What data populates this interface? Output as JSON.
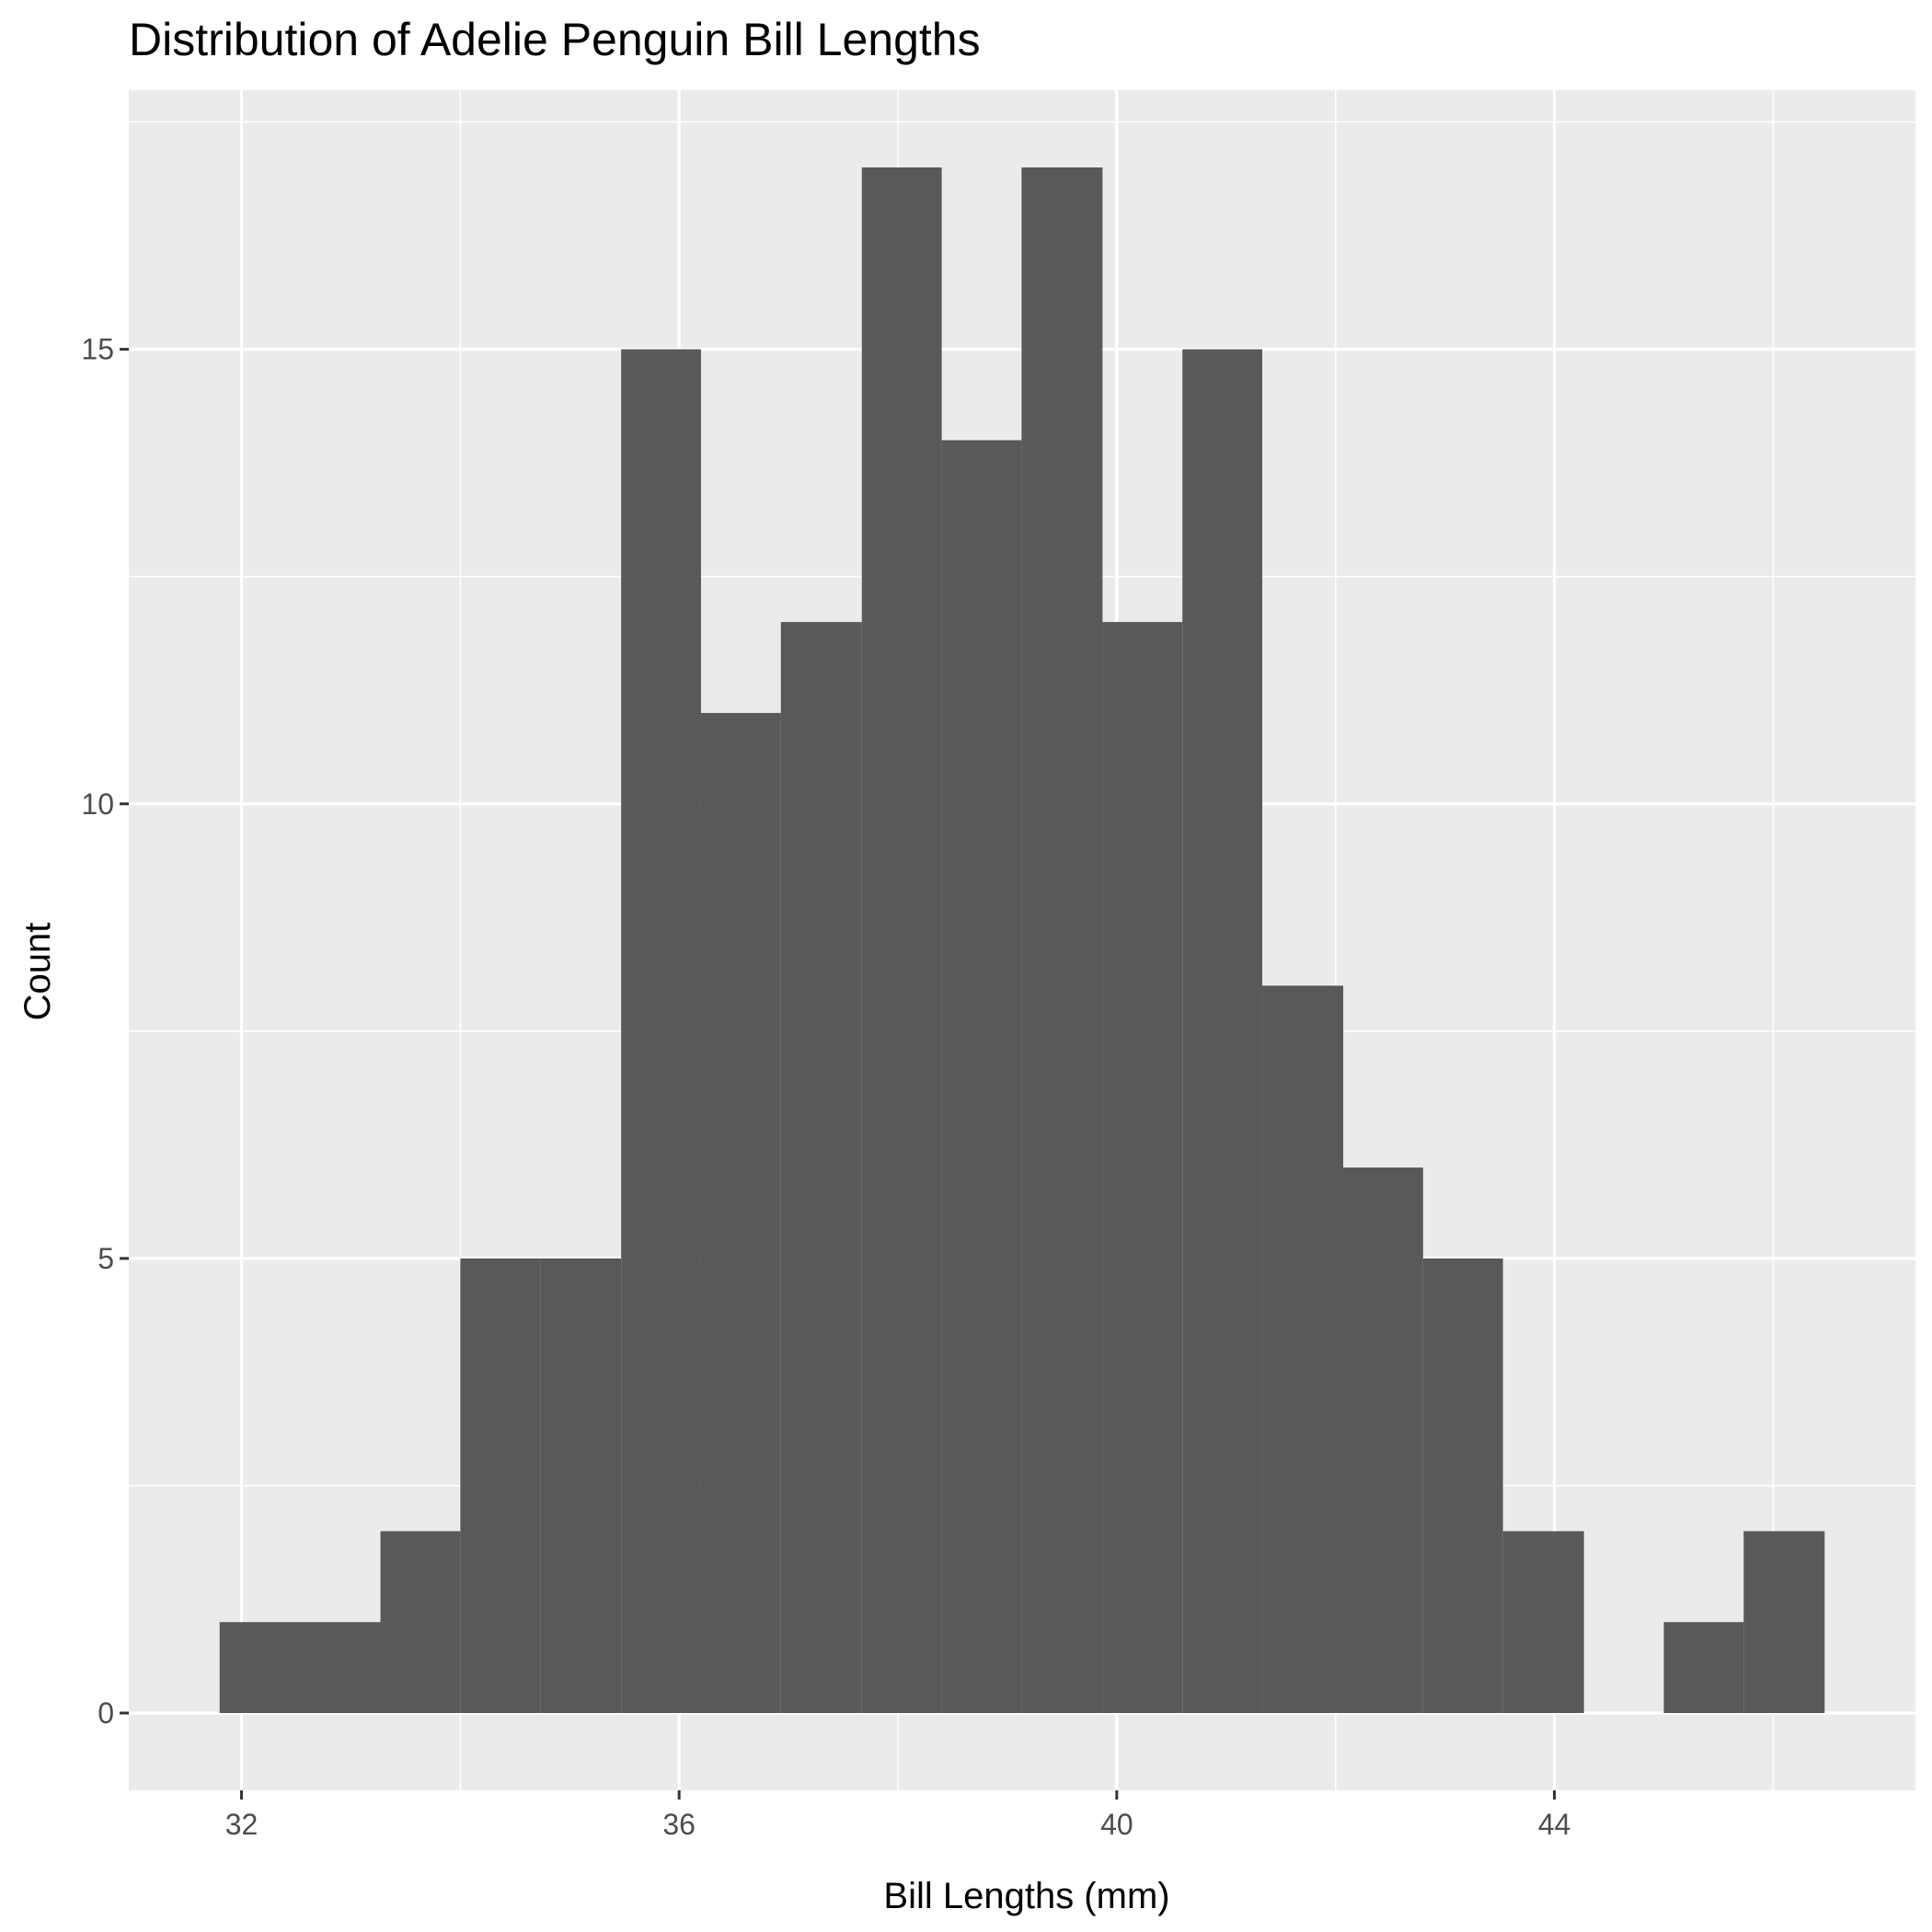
{
  "chart_data": {
    "type": "bar",
    "title": "Distribution of Adelie Penguin Bill Lengths",
    "xlabel": "Bill Lengths (mm)",
    "ylabel": "Count",
    "bin_width": 0.7333,
    "bins": [
      {
        "start": 31.8,
        "end": 32.53,
        "count": 1
      },
      {
        "start": 32.53,
        "end": 33.27,
        "count": 1
      },
      {
        "start": 33.27,
        "end": 34.0,
        "count": 2
      },
      {
        "start": 34.0,
        "end": 34.73,
        "count": 5
      },
      {
        "start": 34.73,
        "end": 35.47,
        "count": 5
      },
      {
        "start": 35.47,
        "end": 36.2,
        "count": 15
      },
      {
        "start": 36.2,
        "end": 36.93,
        "count": 11
      },
      {
        "start": 36.93,
        "end": 37.67,
        "count": 12
      },
      {
        "start": 37.67,
        "end": 38.4,
        "count": 17
      },
      {
        "start": 38.4,
        "end": 39.13,
        "count": 14
      },
      {
        "start": 39.13,
        "end": 39.87,
        "count": 17
      },
      {
        "start": 39.87,
        "end": 40.6,
        "count": 12
      },
      {
        "start": 40.6,
        "end": 41.33,
        "count": 15
      },
      {
        "start": 41.33,
        "end": 42.07,
        "count": 8
      },
      {
        "start": 42.07,
        "end": 42.8,
        "count": 6
      },
      {
        "start": 42.8,
        "end": 43.53,
        "count": 5
      },
      {
        "start": 43.53,
        "end": 44.27,
        "count": 2
      },
      {
        "start": 44.27,
        "end": 45.0,
        "count": 0
      },
      {
        "start": 45.0,
        "end": 45.73,
        "count": 1
      },
      {
        "start": 45.73,
        "end": 46.47,
        "count": 2
      }
    ],
    "xlim": [
      30.97,
      47.3
    ],
    "ylim": [
      -0.85,
      17.85
    ],
    "x_ticks": [
      32,
      36,
      40,
      44
    ],
    "x_tick_labels": [
      "32",
      "36",
      "40",
      "44"
    ],
    "x_minor_ticks": [
      34,
      38,
      42,
      46
    ],
    "y_ticks": [
      0,
      5,
      10,
      15
    ],
    "y_tick_labels": [
      "0",
      "5",
      "10",
      "15"
    ],
    "y_minor_ticks": [
      2.5,
      7.5,
      12.5,
      17.5
    ],
    "grid": true,
    "legend": "none",
    "colors": {
      "bar_fill": "#595959",
      "panel_background": "#ebebeb",
      "grid_line": "#ffffff",
      "tick_label": "#4d4d4d",
      "tick_mark": "#333333"
    }
  }
}
